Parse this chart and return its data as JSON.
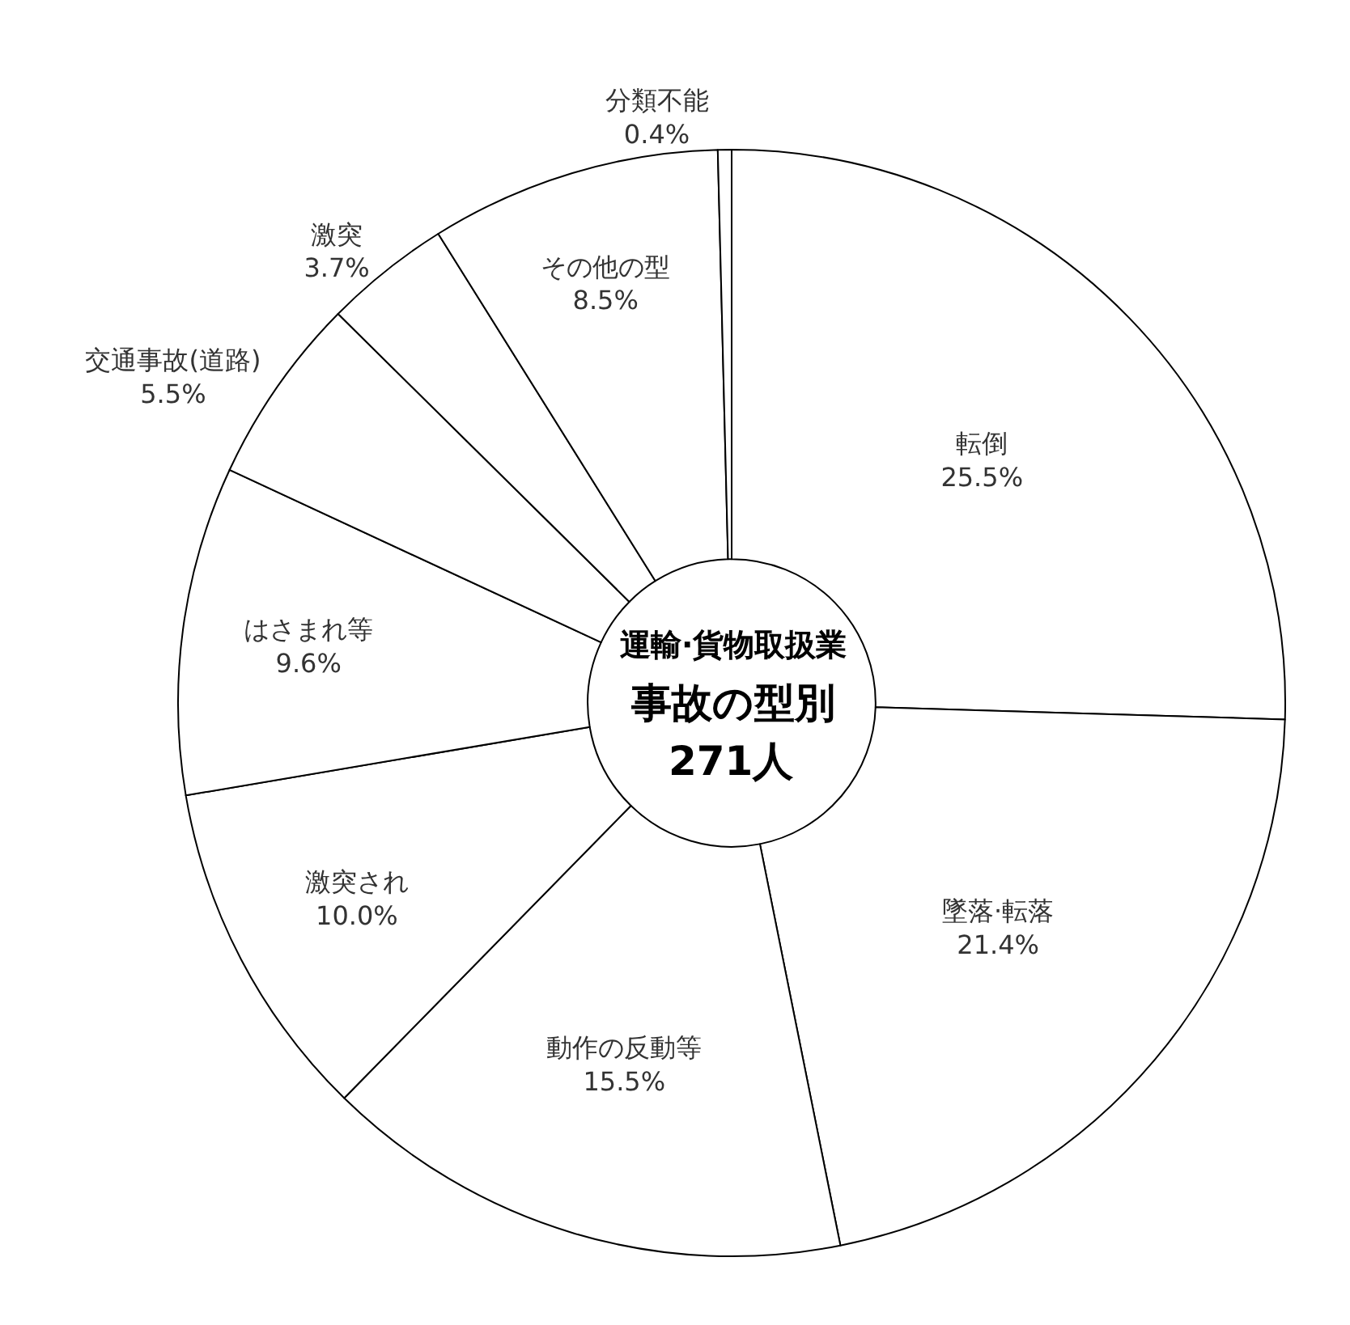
{
  "chart_data": {
    "type": "donut",
    "title": "運輸·貨物取扱業",
    "subtitle": "事故の型別",
    "annotations": [
      "271人"
    ],
    "categories": [
      "転倒",
      "墜落·転落",
      "動作の反動等",
      "激突され",
      "はさまれ等",
      "交通事故(道路)",
      "激突",
      "その他の型",
      "分類不能"
    ],
    "values": [
      25.5,
      21.4,
      15.5,
      10.0,
      9.6,
      5.5,
      3.7,
      8.5,
      0.4
    ],
    "value_labels": [
      "25.5%",
      "21.4%",
      "15.5%",
      "10.0%",
      "9.6%",
      "5.5%",
      "3.7%",
      "8.5%",
      "0.4%"
    ],
    "colors": [
      "#ffffff",
      "#ffffff",
      "#ffffff",
      "#ffffff",
      "#ffffff",
      "#ffffff",
      "#ffffff",
      "#ffffff",
      "#ffffff"
    ],
    "legend": false
  }
}
